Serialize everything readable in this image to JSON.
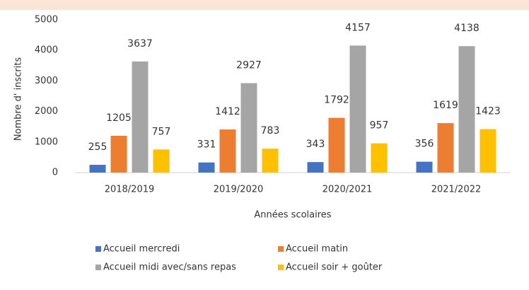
{
  "chart_data": {
    "type": "bar",
    "categories": [
      "2018/2019",
      "2019/2020",
      "2020/2021",
      "2021/2022"
    ],
    "series": [
      {
        "name": "Accueil mercredi",
        "color": "#4472c4",
        "values": [
          255,
          331,
          343,
          356
        ]
      },
      {
        "name": "Accueil matin",
        "color": "#ed7d31",
        "values": [
          1205,
          1412,
          1792,
          1619
        ]
      },
      {
        "name": "Accueil midi avec/sans repas",
        "color": "#a5a5a5",
        "values": [
          3637,
          2927,
          4157,
          4138
        ]
      },
      {
        "name": "Accueil soir + goûter",
        "color": "#ffc000",
        "values": [
          757,
          783,
          957,
          1423
        ]
      }
    ],
    "ylim": [
      0,
      5000
    ],
    "yticks": [
      0,
      1000,
      2000,
      3000,
      4000,
      5000
    ],
    "ylabel": "Nombre d' inscrits",
    "xlabel": "Années scolaires",
    "grid": false,
    "legend": "bottom"
  }
}
